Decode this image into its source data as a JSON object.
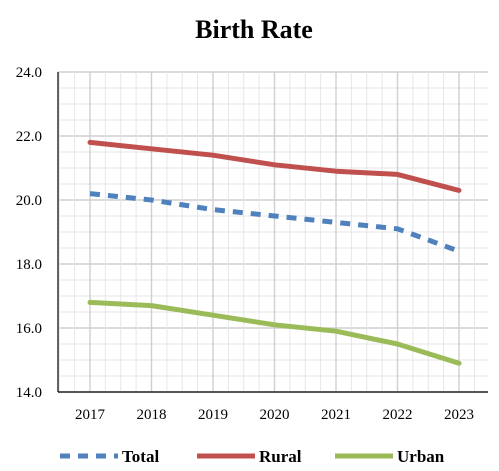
{
  "chart_data": {
    "type": "line",
    "title": "Birth Rate",
    "xlabel": "",
    "ylabel": "",
    "categories": [
      "2017",
      "2018",
      "2019",
      "2020",
      "2021",
      "2022",
      "2023"
    ],
    "yticks": [
      "14.0",
      "16.0",
      "18.0",
      "20.0",
      "22.0",
      "24.0"
    ],
    "ylim": [
      14,
      24
    ],
    "grid": true,
    "legend_position": "bottom",
    "series": [
      {
        "name": "Total",
        "values": [
          20.2,
          20.0,
          19.7,
          19.5,
          19.3,
          19.1,
          18.4
        ],
        "color": "#4F81BD",
        "style": "dashed"
      },
      {
        "name": "Rural",
        "values": [
          21.8,
          21.6,
          21.4,
          21.1,
          20.9,
          20.8,
          20.3
        ],
        "color": "#C0504D",
        "style": "solid"
      },
      {
        "name": "Urban",
        "values": [
          16.8,
          16.7,
          16.4,
          16.1,
          15.9,
          15.5,
          14.9
        ],
        "color": "#9BBB59",
        "style": "solid"
      }
    ]
  }
}
